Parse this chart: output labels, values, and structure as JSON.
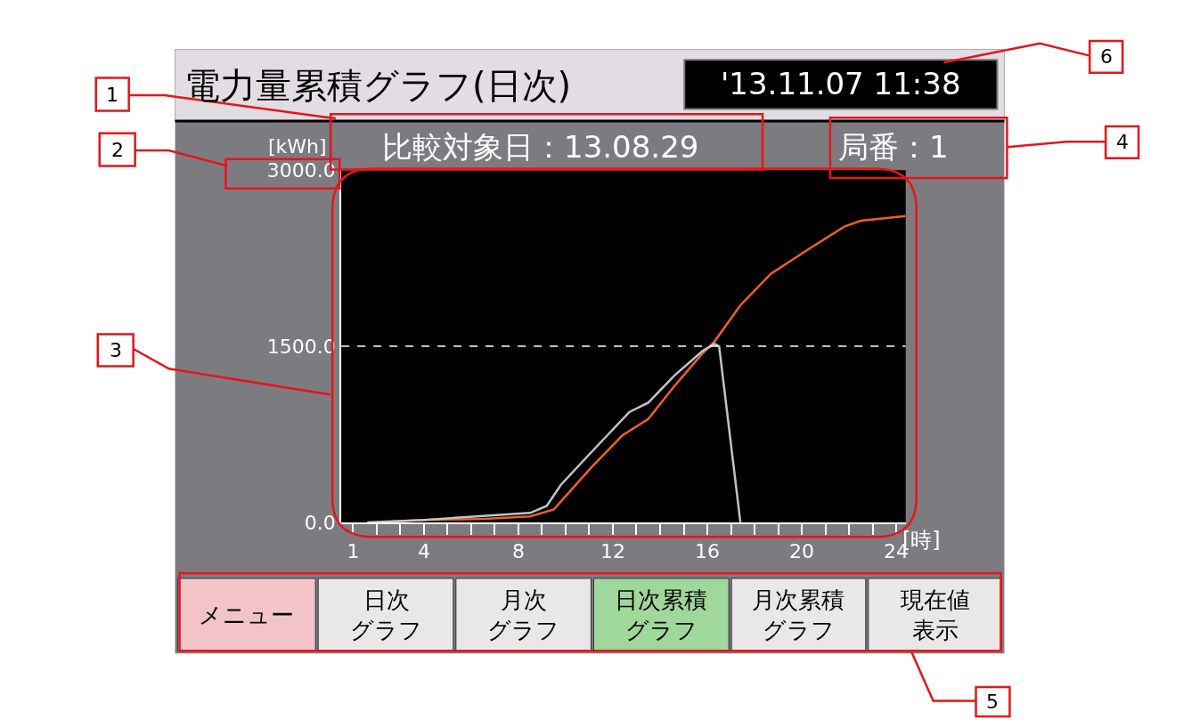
{
  "chart_data": {
    "type": "line",
    "title": "電力量累積グラフ(日次)",
    "ylabel": "[kWh]",
    "xlabel": "[時]",
    "xlim": [
      0.5,
      24.4
    ],
    "ylim": [
      0,
      3000
    ],
    "xticks": [
      1,
      {
        "value": 2,
        "label": null
      },
      {
        "value": 3,
        "label": null
      },
      4,
      {
        "value": 5,
        "label": null
      },
      {
        "value": 6,
        "label": null
      },
      {
        "value": 7,
        "label": null
      },
      8,
      {
        "value": 9,
        "label": null
      },
      {
        "value": 10,
        "label": null
      },
      {
        "value": 11,
        "label": null
      },
      12,
      {
        "value": 13,
        "label": null
      },
      {
        "value": 14,
        "label": null
      },
      {
        "value": 15,
        "label": null
      },
      16,
      {
        "value": 17,
        "label": null
      },
      {
        "value": 18,
        "label": null
      },
      {
        "value": 19,
        "label": null
      },
      20,
      {
        "value": 21,
        "label": null
      },
      {
        "value": 22,
        "label": null
      },
      {
        "value": 23,
        "label": null
      },
      24
    ],
    "yticks": [
      {
        "value": 0,
        "label": "0.0"
      },
      {
        "value": 1500,
        "label": "1500.0"
      },
      {
        "value": 3000,
        "label": "3000.0"
      }
    ],
    "grid": false,
    "marker": "none",
    "line_style": "solid",
    "series": [
      {
        "color": "#f06020",
        "x": [
          2.1,
          4.0,
          6.6,
          8.5,
          9.5,
          11.1,
          12.4,
          13.5,
          14.6,
          15.8,
          16.3,
          17.4,
          18.7,
          20.3,
          21.8,
          22.5,
          24.4
        ],
        "values": [
          0,
          20,
          30,
          50,
          110,
          470,
          740,
          880,
          1160,
          1440,
          1540,
          1850,
          2120,
          2330,
          2520,
          2570,
          2610
        ]
      },
      {
        "color": "#c0c4c8",
        "x": [
          1.6,
          4.0,
          8.5,
          9.2,
          9.8,
          11.1,
          12.7,
          13.5,
          14.6,
          15.8,
          16.3,
          16.5,
          17.4
        ],
        "values": [
          0,
          20,
          80,
          140,
          320,
          600,
          940,
          1020,
          1250,
          1460,
          1520,
          1500,
          0
        ]
      }
    ],
    "ref_lines": [
      {
        "axis": "y",
        "value": 1500,
        "color": "#ffffff",
        "line_style": "dashed"
      }
    ],
    "annotations": [
      "'13.11.07 11:38",
      "比較対象日：13.08.29",
      "局番：1",
      "メニュー",
      "日次グラフ",
      "月次グラフ",
      "日次累積グラフ",
      "月次累積グラフ",
      "現在値表示",
      "1",
      "2",
      "3",
      "4",
      "5",
      "6"
    ]
  }
}
